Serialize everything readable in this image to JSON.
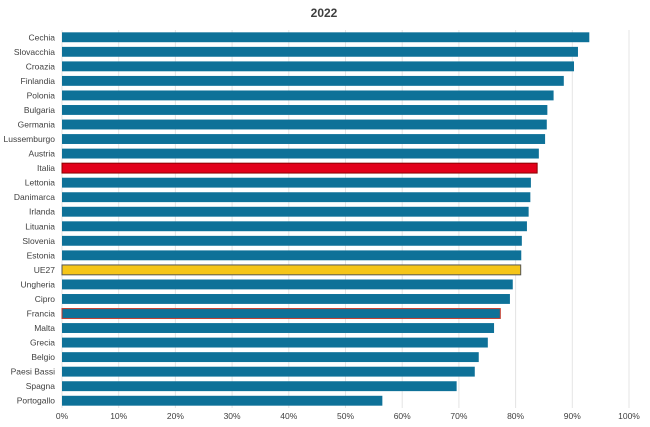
{
  "chart_data": {
    "type": "bar",
    "orientation": "horizontal",
    "title": "2022",
    "xlabel": "",
    "ylabel": "",
    "xlim": [
      0,
      100
    ],
    "x_ticks": [
      "0%",
      "10%",
      "20%",
      "30%",
      "40%",
      "50%",
      "60%",
      "70%",
      "80%",
      "90%",
      "100%"
    ],
    "grid": true,
    "legend": "none",
    "categories": [
      "Cechia",
      "Slovacchia",
      "Croazia",
      "Finlandia",
      "Polonia",
      "Bulgaria",
      "Germania",
      "Lussemburgo",
      "Austria",
      "Italia",
      "Lettonia",
      "Danimarca",
      "Irlanda",
      "Lituania",
      "Slovenia",
      "Estonia",
      "UE27",
      "Ungheria",
      "Cipro",
      "Francia",
      "Malta",
      "Grecia",
      "Belgio",
      "Paesi Bassi",
      "Spagna",
      "Portogallo"
    ],
    "values": [
      93.0,
      91.0,
      90.3,
      88.5,
      86.7,
      85.6,
      85.5,
      85.2,
      84.1,
      83.8,
      82.7,
      82.6,
      82.3,
      82.0,
      81.1,
      81.0,
      80.9,
      79.5,
      79.0,
      77.3,
      76.2,
      75.1,
      73.5,
      72.8,
      69.6,
      56.5
    ],
    "colors": {
      "default": "#0e7198",
      "Italia": "#e2001a",
      "UE27": "#f5c518",
      "Francia": "#0e7198"
    },
    "highlight_borders": {
      "Italia": "#8b0000",
      "UE27": "#555555",
      "Francia": "#c0392b"
    }
  }
}
